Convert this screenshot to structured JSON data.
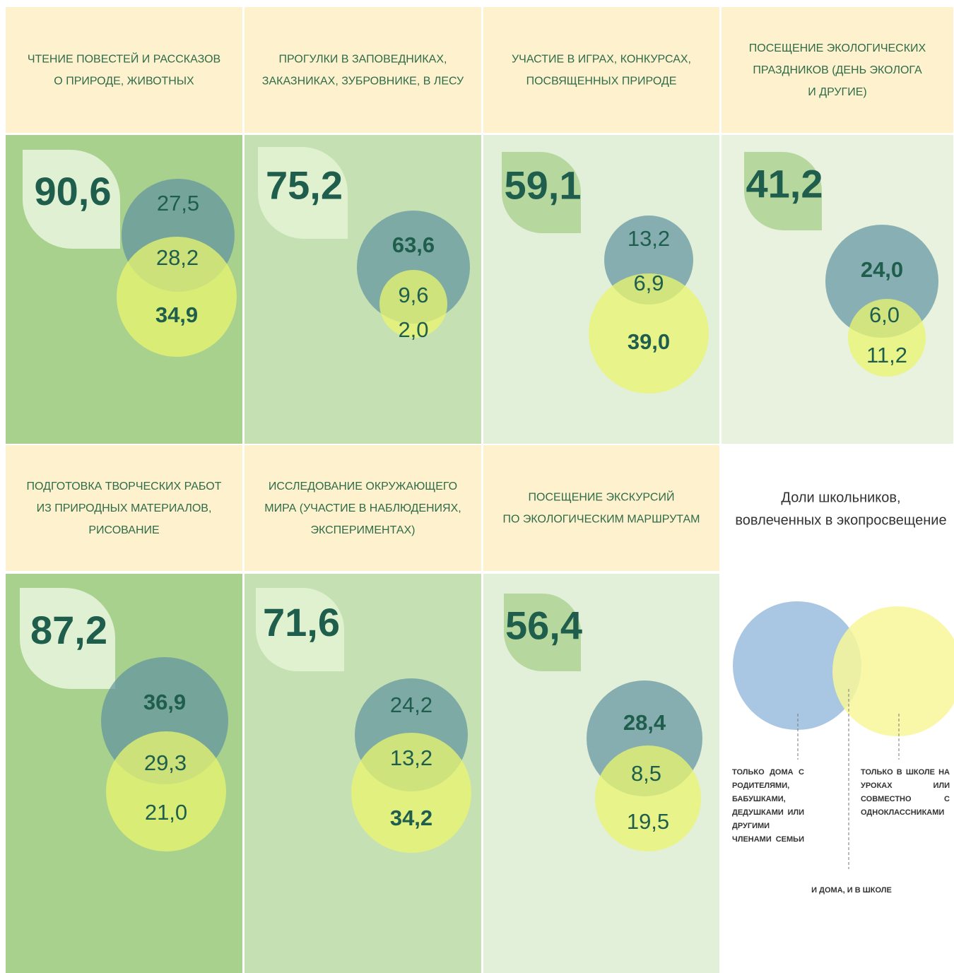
{
  "cards": [
    {
      "title": [
        "ЧТЕНИЕ ПОВЕСТЕЙ И РАССКАЗОВ",
        "О ПРИРОДЕ, ЖИВОТНЫХ"
      ],
      "total": "90,6",
      "home": "27,5",
      "both": "28,2",
      "school": "34,9"
    },
    {
      "title": [
        "ПРОГУЛКИ В ЗАПОВЕДНИКАХ,",
        "ЗАКАЗНИКАХ, ЗУБРОВНИКЕ, В ЛЕСУ"
      ],
      "total": "75,2",
      "home": "63,6",
      "both": "9,6",
      "school": "2,0"
    },
    {
      "title": [
        "УЧАСТИЕ В ИГРАХ, КОНКУРСАХ,",
        "ПОСВЯЩЕННЫХ ПРИРОДЕ"
      ],
      "total": "59,1",
      "home": "13,2",
      "both": "6,9",
      "school": "39,0"
    },
    {
      "title": [
        "ПОСЕЩЕНИЕ ЭКОЛОГИЧЕСКИХ",
        "ПРАЗДНИКОВ (ДЕНЬ ЭКОЛОГА",
        "И ДРУГИЕ)"
      ],
      "total": "41,2",
      "home": "24,0",
      "both": "6,0",
      "school": "11,2"
    },
    {
      "title": [
        "ПОДГОТОВКА ТВОРЧЕСКИХ РАБОТ",
        "ИЗ ПРИРОДНЫХ МАТЕРИАЛОВ,",
        "РИСОВАНИЕ"
      ],
      "total": "87,2",
      "home": "36,9",
      "both": "29,3",
      "school": "21,0"
    },
    {
      "title": [
        "ИССЛЕДОВАНИЕ ОКРУЖАЮЩЕГО",
        "МИРА (УЧАСТИЕ В НАБЛЮДЕНИЯХ,",
        "ЭКСПЕРИМЕНТАХ)"
      ],
      "total": "71,6",
      "home": "24,2",
      "both": "13,2",
      "school": "34,2"
    },
    {
      "title": [
        "ПОСЕЩЕНИЕ ЭКСКУРСИЙ",
        "ПО ЭКОЛОГИЧЕСКИМ МАРШРУТАМ"
      ],
      "total": "56,4",
      "home": "28,4",
      "both": "8,5",
      "school": "19,5"
    }
  ],
  "legend": {
    "title": [
      "Доли школьников,",
      "вовлеченных в экопросвещение"
    ],
    "home": "ТОЛЬКО ДОМА С РОДИТЕЛЯМИ, БАБУШКАМИ, ДЕДУШКАМИ ИЛИ ДРУГИМИ ЧЛЕНАМИ СЕМЬИ",
    "school": "ТОЛЬКО В ШКОЛЕ НА УРОКАХ ИЛИ СОВМЕСТНО С ОДНОКЛАССНИКАМИ",
    "both": "И ДОМА, И В ШКОЛЕ"
  }
}
